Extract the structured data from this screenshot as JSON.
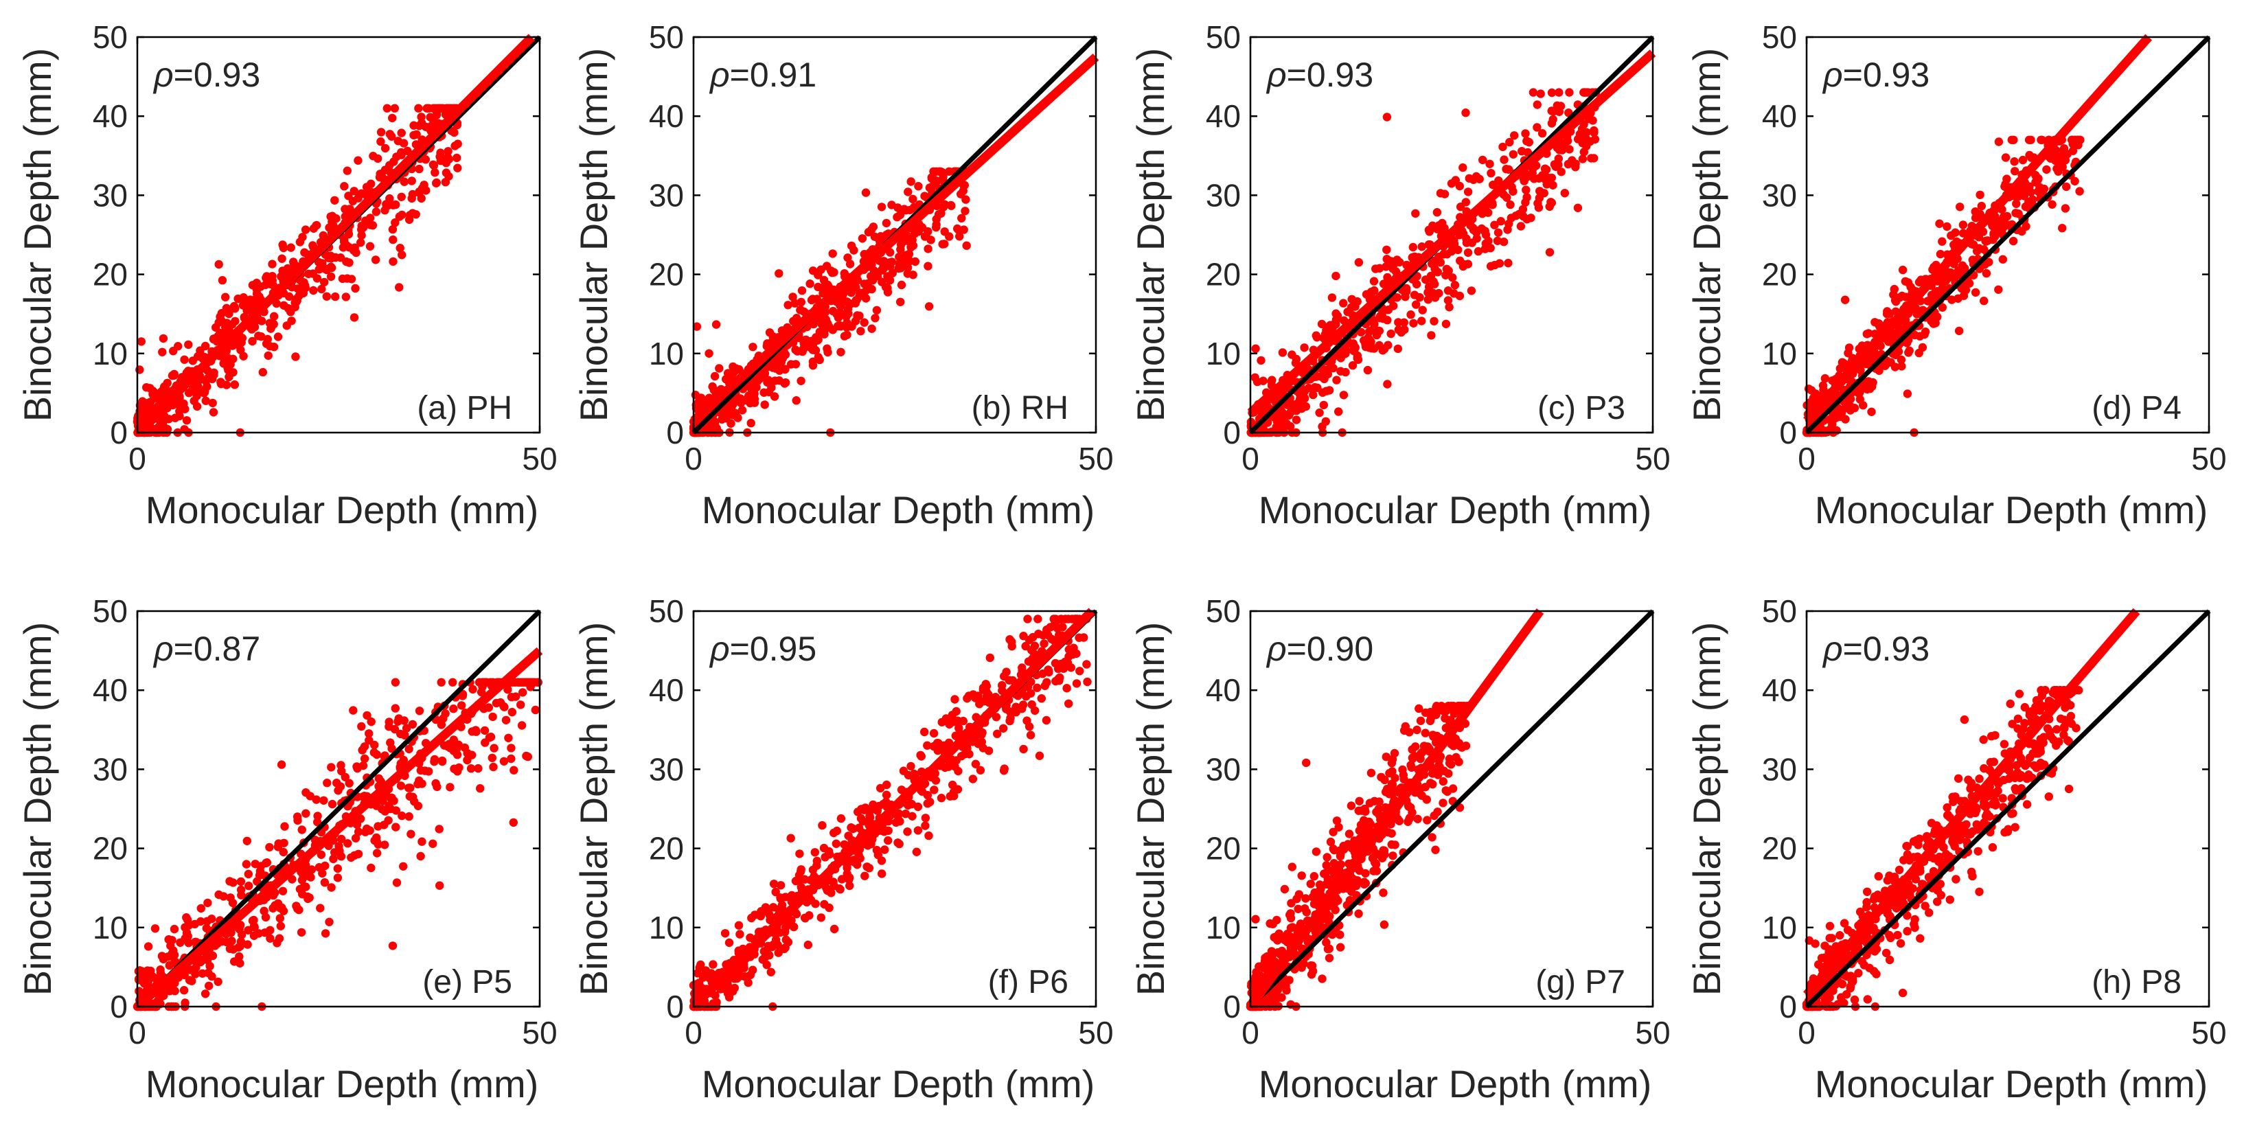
{
  "figure": {
    "x_axis_label": "Monocular Depth (mm)",
    "y_axis_label": "Binocular Depth (mm)",
    "xlim": [
      0,
      50
    ],
    "ylim": [
      0,
      50
    ],
    "x_ticks": [
      "0",
      "50"
    ],
    "y_ticks": [
      "0",
      "10",
      "20",
      "30",
      "40",
      "50"
    ],
    "identity_line_color": "#000000",
    "fit_line_color": "#ff0000",
    "point_color": "#ff0000"
  },
  "chart_data": [
    {
      "type": "scatter",
      "panel": "(a) PH",
      "rho": "ρ=0.93",
      "rho_symbol": "ρ",
      "rho_value": "=0.93",
      "title": "",
      "xlabel": "Monocular Depth (mm)",
      "ylabel": "Binocular Depth (mm)",
      "xlim": [
        0,
        50
      ],
      "ylim": [
        0,
        50
      ],
      "fit": {
        "x": [
          0,
          49
        ],
        "y": [
          0,
          50
        ]
      },
      "cloud": {
        "x_max": 40,
        "y_max": 41,
        "slope": 1.0,
        "spread": 3.8,
        "n": 650
      }
    },
    {
      "type": "scatter",
      "panel": "(b) RH",
      "rho": "ρ=0.91",
      "rho_symbol": "ρ",
      "rho_value": "=0.91",
      "title": "",
      "xlabel": "Monocular Depth (mm)",
      "ylabel": "Binocular Depth (mm)",
      "xlim": [
        0,
        50
      ],
      "ylim": [
        0,
        50
      ],
      "fit": {
        "x": [
          0,
          50
        ],
        "y": [
          1.5,
          47.5
        ]
      },
      "cloud": {
        "x_max": 34,
        "y_max": 33,
        "slope": 0.93,
        "spread": 3.6,
        "n": 650
      }
    },
    {
      "type": "scatter",
      "panel": "(c) P3",
      "rho": "ρ=0.93",
      "rho_symbol": "ρ",
      "rho_value": "=0.93",
      "title": "",
      "xlabel": "Monocular Depth (mm)",
      "ylabel": "Binocular Depth (mm)",
      "xlim": [
        0,
        50
      ],
      "ylim": [
        0,
        50
      ],
      "fit": {
        "x": [
          0,
          50
        ],
        "y": [
          2.5,
          48
        ]
      },
      "cloud": {
        "x_max": 43,
        "y_max": 43,
        "slope": 0.95,
        "spread": 4.5,
        "n": 650
      }
    },
    {
      "type": "scatter",
      "panel": "(d) P4",
      "rho": "ρ=0.93",
      "rho_symbol": "ρ",
      "rho_value": "=0.93",
      "title": "",
      "xlabel": "Monocular Depth (mm)",
      "ylabel": "Binocular Depth (mm)",
      "xlim": [
        0,
        50
      ],
      "ylim": [
        0,
        50
      ],
      "fit": {
        "x": [
          0,
          42.5
        ],
        "y": [
          1.5,
          50
        ]
      },
      "cloud": {
        "x_max": 34,
        "y_max": 37,
        "slope": 1.13,
        "spread": 3.5,
        "n": 650
      }
    },
    {
      "type": "scatter",
      "panel": "(e) P5",
      "rho": "ρ=0.87",
      "rho_symbol": "ρ",
      "rho_value": "=0.87",
      "title": "",
      "xlabel": "Monocular Depth (mm)",
      "ylabel": "Binocular Depth (mm)",
      "xlim": [
        0,
        50
      ],
      "ylim": [
        0,
        50
      ],
      "fit": {
        "x": [
          0,
          50
        ],
        "y": [
          0,
          45
        ]
      },
      "cloud": {
        "x_max": 50,
        "y_max": 41,
        "slope": 0.9,
        "spread": 5.5,
        "n": 650
      }
    },
    {
      "type": "scatter",
      "panel": "(f) P6",
      "rho": "ρ=0.95",
      "rho_symbol": "ρ",
      "rho_value": "=0.95",
      "title": "",
      "xlabel": "Monocular Depth (mm)",
      "ylabel": "Binocular Depth (mm)",
      "xlim": [
        0,
        50
      ],
      "ylim": [
        0,
        50
      ],
      "fit": {
        "x": [
          0,
          49.5
        ],
        "y": [
          0,
          50
        ]
      },
      "cloud": {
        "x_max": 49,
        "y_max": 49,
        "slope": 1.0,
        "spread": 3.4,
        "n": 650
      }
    },
    {
      "type": "scatter",
      "panel": "(g) P7",
      "rho": "ρ=0.90",
      "rho_symbol": "ρ",
      "rho_value": "=0.90",
      "title": "",
      "xlabel": "Monocular Depth (mm)",
      "ylabel": "Binocular Depth (mm)",
      "xlim": [
        0,
        50
      ],
      "ylim": [
        0,
        50
      ],
      "fit": {
        "x": [
          0,
          36
        ],
        "y": [
          0,
          50
        ]
      },
      "cloud": {
        "x_max": 27,
        "y_max": 38,
        "slope": 1.38,
        "spread": 4.2,
        "n": 650
      }
    },
    {
      "type": "scatter",
      "panel": "(h) P8",
      "rho": "ρ=0.93",
      "rho_symbol": "ρ",
      "rho_value": "=0.93",
      "title": "",
      "xlabel": "Monocular Depth (mm)",
      "ylabel": "Binocular Depth (mm)",
      "xlim": [
        0,
        50
      ],
      "ylim": [
        0,
        50
      ],
      "fit": {
        "x": [
          0,
          41
        ],
        "y": [
          1.5,
          50
        ]
      },
      "cloud": {
        "x_max": 34,
        "y_max": 40,
        "slope": 1.18,
        "spread": 4.0,
        "n": 650
      }
    }
  ]
}
